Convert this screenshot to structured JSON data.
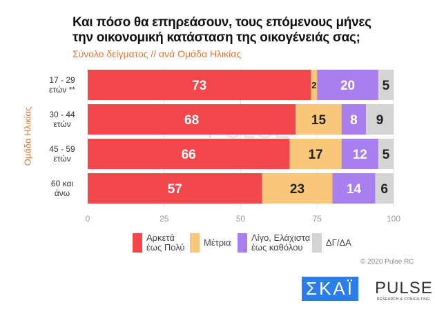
{
  "chart_data": {
    "type": "bar",
    "orientation": "horizontal-stacked",
    "title": "Και πόσο θα επηρεάσουν, τους επόμενους μήνες την οικονομική κατάσταση της οικογένειάς σας;",
    "title_lines": [
      "Και πόσο θα επηρεάσουν, τους επόμενους μήνες",
      "την οικονομική κατάσταση της οικογένειάς σας;"
    ],
    "subtitle": "Σύνολο δείγματος // ανά Ομάδα Ηλικίας",
    "ylabel": "Ομάδα Ηλικίας",
    "categories": [
      [
        "17 - 29",
        "ετών **"
      ],
      [
        "30 - 44",
        "ετών"
      ],
      [
        "45 - 59",
        "ετών"
      ],
      [
        "60 και",
        "άνω"
      ]
    ],
    "series": [
      {
        "name": "Αρκετά έως Πολύ",
        "name_lines": [
          "Αρκετά",
          "έως Πολύ"
        ],
        "color": "#f2484b",
        "values": [
          73,
          68,
          66,
          57
        ]
      },
      {
        "name": "Μέτρια",
        "name_lines": [
          "Μέτρια"
        ],
        "color": "#f9c77a",
        "values": [
          2,
          15,
          17,
          23
        ]
      },
      {
        "name": "Λίγο, Ελάχιστα έως καθόλου",
        "name_lines": [
          "Λίγο, Ελάχιστα",
          "έως καθόλου"
        ],
        "color": "#a97ff0",
        "values": [
          20,
          8,
          12,
          14
        ]
      },
      {
        "name": "ΔΓ/ΔΑ",
        "name_lines": [
          "ΔΓ/ΔΑ"
        ],
        "color": "#d4d4d4",
        "values": [
          5,
          9,
          5,
          6
        ]
      }
    ],
    "xlim": [
      0,
      100
    ],
    "xticks": [
      0,
      25,
      50,
      75,
      100
    ],
    "grid": true,
    "legend": "bottom"
  },
  "footer": {
    "copyright": "© 2020 Pulse RC",
    "logo_skai": "ΣΚΑΪ",
    "logo_pulse": "PULSE",
    "logo_pulse_sub": "RESEARCH & CONSULTING"
  }
}
